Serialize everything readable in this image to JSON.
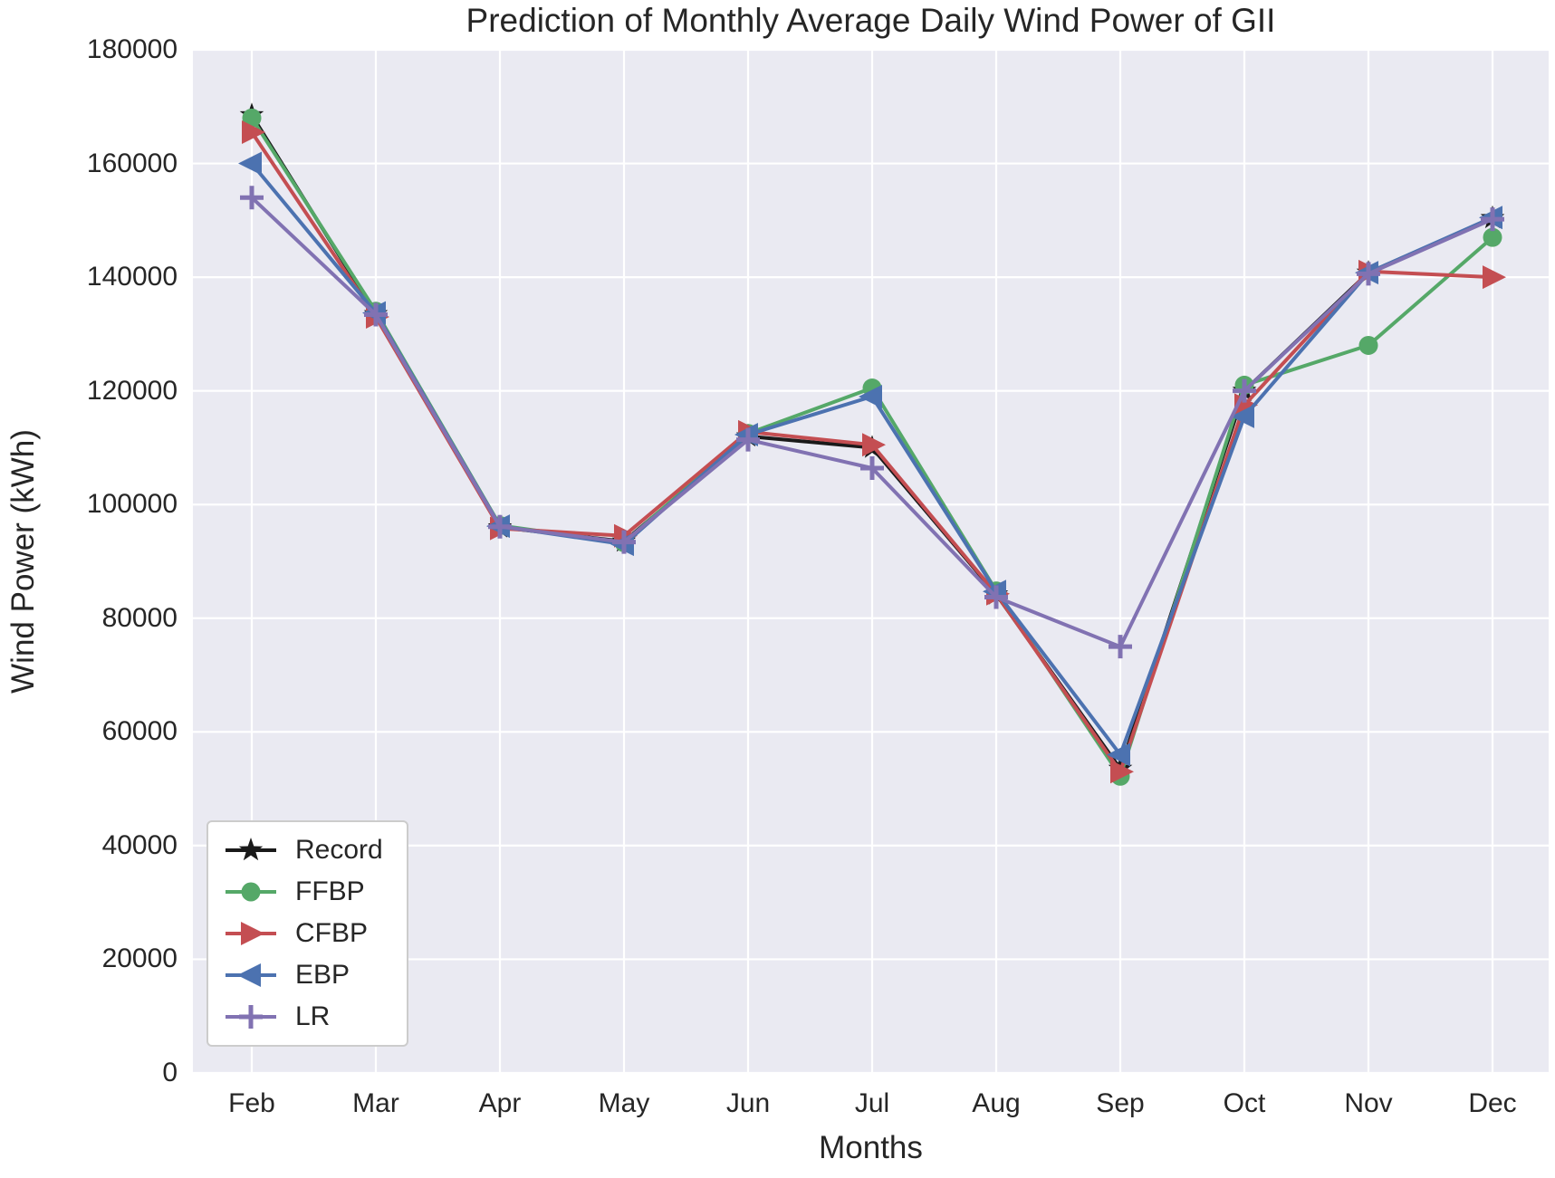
{
  "title": "Prediction of Monthly Average Daily Wind Power of GII",
  "chart_data": {
    "type": "line",
    "title": "Prediction of Monthly Average Daily Wind Power of GII",
    "xlabel": "Months",
    "ylabel": "Wind Power (kWh)",
    "categories": [
      "Feb",
      "Mar",
      "Apr",
      "May",
      "Jun",
      "Jul",
      "Aug",
      "Sep",
      "Oct",
      "Nov",
      "Dec"
    ],
    "ylim": [
      0,
      180000
    ],
    "yticks": [
      0,
      20000,
      40000,
      60000,
      80000,
      100000,
      120000,
      140000,
      160000,
      180000
    ],
    "grid": true,
    "legend_position": "lower-left",
    "plot_bg": "#eaeaf2",
    "grid_color": "#ffffff",
    "series": [
      {
        "name": "Record",
        "color": "#1a1a1a",
        "marker": "star",
        "values": [
          168500,
          133500,
          96000,
          93500,
          112000,
          110000,
          84200,
          53500,
          120000,
          140800,
          150400
        ]
      },
      {
        "name": "FFBP",
        "color": "#55a868",
        "marker": "circle",
        "values": [
          168000,
          134000,
          96300,
          93300,
          112500,
          120500,
          84800,
          52200,
          121000,
          128000,
          147000
        ]
      },
      {
        "name": "CFBP",
        "color": "#c44e52",
        "marker": "triangle-right",
        "values": [
          165500,
          133000,
          95800,
          94500,
          112800,
          110500,
          84300,
          53000,
          117500,
          141000,
          140000
        ]
      },
      {
        "name": "EBP",
        "color": "#4c72b0",
        "marker": "triangle-left",
        "values": [
          160000,
          133700,
          96200,
          93000,
          112300,
          119000,
          84700,
          56000,
          115500,
          140800,
          150500
        ]
      },
      {
        "name": "LR",
        "color": "#8172b2",
        "marker": "plus",
        "values": [
          154000,
          133400,
          96100,
          93400,
          111400,
          106400,
          83700,
          75000,
          120000,
          140600,
          150200
        ]
      }
    ]
  }
}
